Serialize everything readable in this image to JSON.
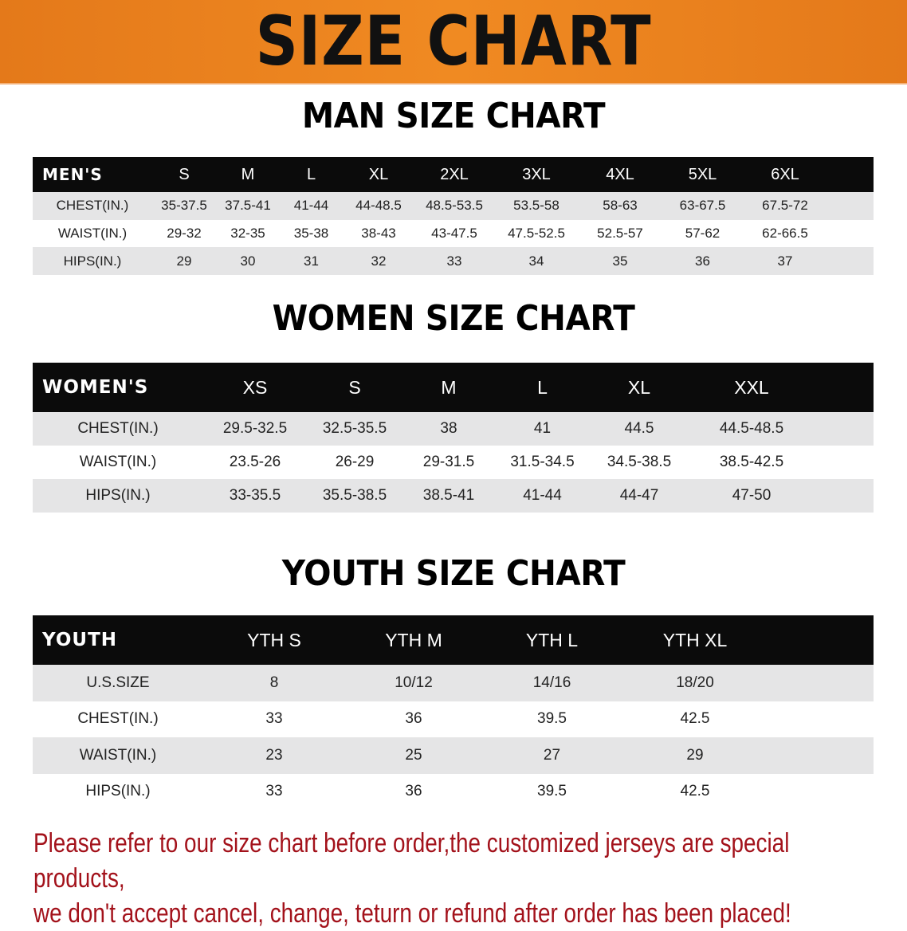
{
  "banner": {
    "title": "SIZE CHART",
    "color": "#ea7f1f"
  },
  "men": {
    "title": "MAN SIZE CHART",
    "header": [
      "MEN'S",
      "S",
      "M",
      "L",
      "XL",
      "2XL",
      "3XL",
      "4XL",
      "5XL",
      "6XL"
    ],
    "rows": [
      [
        "CHEST(IN.)",
        "35-37.5",
        "37.5-41",
        "41-44",
        "44-48.5",
        "48.5-53.5",
        "53.5-58",
        "58-63",
        "63-67.5",
        "67.5-72"
      ],
      [
        "WAIST(IN.)",
        "29-32",
        "32-35",
        "35-38",
        "38-43",
        "43-47.5",
        "47.5-52.5",
        "52.5-57",
        "57-62",
        "62-66.5"
      ],
      [
        "HIPS(IN.)",
        "29",
        "30",
        "31",
        "32",
        "33",
        "34",
        "35",
        "36",
        "37"
      ]
    ]
  },
  "women": {
    "title": "WOMEN SIZE CHART",
    "header": [
      "WOMEN'S",
      "XS",
      "S",
      "M",
      "L",
      "XL",
      "XXL"
    ],
    "rows": [
      [
        "CHEST(IN.)",
        "29.5-32.5",
        "32.5-35.5",
        "38",
        "41",
        "44.5",
        "44.5-48.5"
      ],
      [
        "WAIST(IN.)",
        "23.5-26",
        "26-29",
        "29-31.5",
        "31.5-34.5",
        "34.5-38.5",
        "38.5-42.5"
      ],
      [
        "HIPS(IN.)",
        "33-35.5",
        "35.5-38.5",
        "38.5-41",
        "41-44",
        "44-47",
        "47-50"
      ]
    ]
  },
  "youth": {
    "title": "YOUTH SIZE CHART",
    "header": [
      "YOUTH",
      "YTH S",
      "YTH M",
      "YTH L",
      "YTH XL"
    ],
    "rows": [
      [
        "U.S.SIZE",
        "8",
        "10/12",
        "14/16",
        "18/20"
      ],
      [
        "CHEST(IN.)",
        "33",
        "36",
        "39.5",
        "42.5"
      ],
      [
        "WAIST(IN.)",
        "23",
        "25",
        "27",
        "29"
      ],
      [
        "HIPS(IN.)",
        "33",
        "36",
        "39.5",
        "42.5"
      ]
    ]
  },
  "notice": {
    "line1": "Please refer to our size chart before order,the customized jerseys are special products,",
    "line2": "we don't accept cancel, change, teturn or refund after order has been placed!",
    "color": "#a3121b"
  }
}
